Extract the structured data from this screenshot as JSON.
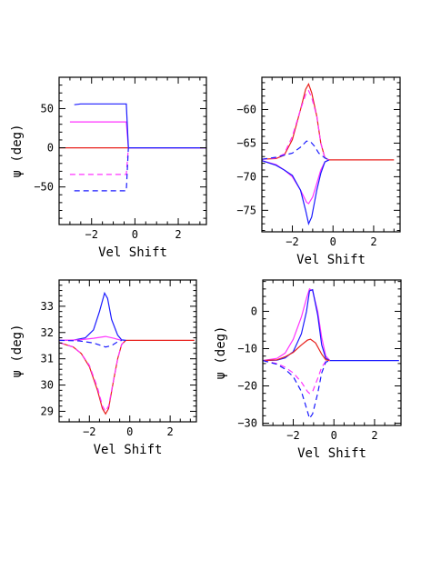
{
  "colors": {
    "red": "#e8201c",
    "magenta": "#ff33ff",
    "blue": "#1a1aff",
    "axis": "#000000"
  },
  "chart_data": [
    {
      "type": "line",
      "panel": "top-left",
      "xlabel": "Vel Shift",
      "ylabel": "ψ (deg)",
      "xlim": [
        -3.5,
        3.3
      ],
      "ylim": [
        -98,
        90
      ],
      "xticks": [
        -2,
        0,
        2
      ],
      "yticks": [
        -50,
        0,
        50
      ],
      "series": [
        {
          "color": "red",
          "style": "solid",
          "points": [
            [
              -3.5,
              0
            ],
            [
              3.3,
              0
            ]
          ]
        },
        {
          "color": "magenta",
          "style": "solid",
          "points": [
            [
              -3.0,
              33
            ],
            [
              -0.4,
              33
            ],
            [
              -0.3,
              0
            ],
            [
              3.3,
              0
            ]
          ]
        },
        {
          "color": "blue",
          "style": "solid",
          "points": [
            [
              -2.8,
              55
            ],
            [
              -2.5,
              56
            ],
            [
              -2,
              56
            ],
            [
              -1,
              56
            ],
            [
              -0.4,
              56
            ],
            [
              -0.3,
              0
            ],
            [
              3.3,
              0
            ]
          ]
        },
        {
          "color": "magenta",
          "style": "dashed",
          "points": [
            [
              -3.0,
              -34
            ],
            [
              -0.4,
              -34
            ],
            [
              -0.3,
              0
            ]
          ]
        },
        {
          "color": "blue",
          "style": "dashed",
          "points": [
            [
              -2.8,
              -55
            ],
            [
              -0.4,
              -55
            ],
            [
              -0.3,
              0
            ]
          ]
        }
      ]
    },
    {
      "type": "line",
      "panel": "top-right",
      "xlabel": "Vel Shift",
      "ylabel": "",
      "xlim": [
        -3.5,
        3.3
      ],
      "ylim": [
        -78.2,
        -55.2
      ],
      "xticks": [
        -2,
        0,
        2
      ],
      "yticks": [
        -75,
        -70,
        -65,
        -60
      ],
      "series": [
        {
          "color": "red",
          "style": "solid",
          "points": [
            [
              -3.5,
              -67.4
            ],
            [
              -2.8,
              -67.3
            ],
            [
              -2.4,
              -66.8
            ],
            [
              -2,
              -64.5
            ],
            [
              -1.6,
              -60
            ],
            [
              -1.35,
              -57
            ],
            [
              -1.2,
              -56.2
            ],
            [
              -1.05,
              -57.5
            ],
            [
              -0.8,
              -61
            ],
            [
              -0.6,
              -65
            ],
            [
              -0.4,
              -67.2
            ],
            [
              -0.2,
              -67.5
            ],
            [
              3.0,
              -67.5
            ]
          ]
        },
        {
          "color": "magenta",
          "style": "dashed",
          "points": [
            [
              -3.5,
              -67.4
            ],
            [
              -2.8,
              -67.2
            ],
            [
              -2.4,
              -66.6
            ],
            [
              -2,
              -64
            ],
            [
              -1.6,
              -60
            ],
            [
              -1.35,
              -57.8
            ],
            [
              -1.2,
              -57.2
            ],
            [
              -1.05,
              -58.2
            ],
            [
              -0.8,
              -61
            ],
            [
              -0.6,
              -65
            ],
            [
              -0.4,
              -67.2
            ],
            [
              -0.2,
              -67.5
            ]
          ]
        },
        {
          "color": "magenta",
          "style": "solid",
          "points": [
            [
              -3.5,
              -67.6
            ],
            [
              -2.8,
              -68.2
            ],
            [
              -2.4,
              -69
            ],
            [
              -2,
              -70
            ],
            [
              -1.6,
              -72
            ],
            [
              -1.3,
              -73.8
            ],
            [
              -1.2,
              -74
            ],
            [
              -1,
              -73
            ],
            [
              -0.8,
              -71
            ],
            [
              -0.6,
              -69
            ],
            [
              -0.4,
              -67.8
            ],
            [
              -0.2,
              -67.5
            ]
          ]
        },
        {
          "color": "blue",
          "style": "solid",
          "points": [
            [
              -3.5,
              -67.6
            ],
            [
              -2.8,
              -68.3
            ],
            [
              -2.4,
              -69
            ],
            [
              -2,
              -69.8
            ],
            [
              -1.6,
              -72
            ],
            [
              -1.35,
              -75
            ],
            [
              -1.2,
              -77
            ],
            [
              -1.05,
              -76
            ],
            [
              -0.8,
              -72
            ],
            [
              -0.6,
              -69.5
            ],
            [
              -0.4,
              -67.8
            ],
            [
              -0.2,
              -67.5
            ]
          ]
        },
        {
          "color": "blue",
          "style": "dashed",
          "points": [
            [
              -3.5,
              -67.4
            ],
            [
              -2.8,
              -67.1
            ],
            [
              -2.4,
              -66.8
            ],
            [
              -2,
              -66.5
            ],
            [
              -1.6,
              -65.6
            ],
            [
              -1.3,
              -64.7
            ],
            [
              -1.1,
              -64.8
            ],
            [
              -0.9,
              -65.5
            ],
            [
              -0.7,
              -66.5
            ],
            [
              -0.4,
              -67.2
            ],
            [
              -0.2,
              -67.5
            ]
          ]
        }
      ]
    },
    {
      "type": "line",
      "panel": "bottom-left",
      "xlabel": "Vel Shift",
      "ylabel": "ψ (deg)",
      "xlim": [
        -3.5,
        3.3
      ],
      "ylim": [
        28.6,
        34.0
      ],
      "xticks": [
        -2,
        0,
        2
      ],
      "yticks": [
        29,
        30,
        31,
        32,
        33
      ],
      "series": [
        {
          "color": "red",
          "style": "solid",
          "points": [
            [
              -3.5,
              31.62
            ],
            [
              -2.8,
              31.45
            ],
            [
              -2.4,
              31.2
            ],
            [
              -2,
              30.7
            ],
            [
              -1.6,
              29.8
            ],
            [
              -1.35,
              29.1
            ],
            [
              -1.2,
              28.9
            ],
            [
              -1.05,
              29.1
            ],
            [
              -0.8,
              30.2
            ],
            [
              -0.6,
              31.0
            ],
            [
              -0.4,
              31.55
            ],
            [
              -0.2,
              31.7
            ],
            [
              3.2,
              31.7
            ]
          ]
        },
        {
          "color": "magenta",
          "style": "dashed",
          "points": [
            [
              -3.5,
              31.62
            ],
            [
              -2.8,
              31.45
            ],
            [
              -2.4,
              31.2
            ],
            [
              -2,
              30.75
            ],
            [
              -1.6,
              29.9
            ],
            [
              -1.35,
              29.2
            ],
            [
              -1.2,
              29.0
            ],
            [
              -1.05,
              29.2
            ],
            [
              -0.8,
              30.2
            ],
            [
              -0.6,
              31.0
            ],
            [
              -0.4,
              31.55
            ],
            [
              -0.2,
              31.7
            ]
          ]
        },
        {
          "color": "blue",
          "style": "solid",
          "points": [
            [
              -3.5,
              31.7
            ],
            [
              -2.8,
              31.71
            ],
            [
              -2.2,
              31.8
            ],
            [
              -1.8,
              32.1
            ],
            [
              -1.5,
              32.8
            ],
            [
              -1.25,
              33.5
            ],
            [
              -1.1,
              33.3
            ],
            [
              -0.9,
              32.5
            ],
            [
              -0.6,
              31.9
            ],
            [
              -0.4,
              31.72
            ],
            [
              -0.2,
              31.7
            ]
          ]
        },
        {
          "color": "magenta",
          "style": "solid",
          "points": [
            [
              -3.5,
              31.7
            ],
            [
              -2.5,
              31.72
            ],
            [
              -1.8,
              31.78
            ],
            [
              -1.2,
              31.85
            ],
            [
              -0.8,
              31.78
            ],
            [
              -0.4,
              31.7
            ]
          ]
        },
        {
          "color": "blue",
          "style": "dashed",
          "points": [
            [
              -3.5,
              31.7
            ],
            [
              -2.5,
              31.68
            ],
            [
              -1.8,
              31.6
            ],
            [
              -1.2,
              31.45
            ],
            [
              -0.9,
              31.5
            ],
            [
              -0.6,
              31.65
            ],
            [
              -0.4,
              31.7
            ]
          ]
        }
      ]
    },
    {
      "type": "line",
      "panel": "bottom-right",
      "xlabel": "Vel Shift",
      "ylabel": "ψ (deg)",
      "xlim": [
        -3.5,
        3.3
      ],
      "ylim": [
        -30.6,
        8.4
      ],
      "xticks": [
        -2,
        0,
        2
      ],
      "yticks": [
        -30,
        -20,
        -10,
        0
      ],
      "series": [
        {
          "color": "magenta",
          "style": "solid",
          "points": [
            [
              -3.5,
              -13.2
            ],
            [
              -2.8,
              -12.6
            ],
            [
              -2.4,
              -11.2
            ],
            [
              -2,
              -7.5
            ],
            [
              -1.6,
              -1.5
            ],
            [
              -1.35,
              3.5
            ],
            [
              -1.2,
              6.0
            ],
            [
              -1.05,
              5.5
            ],
            [
              -0.8,
              0
            ],
            [
              -0.6,
              -7
            ],
            [
              -0.4,
              -12
            ],
            [
              -0.2,
              -13.2
            ]
          ]
        },
        {
          "color": "blue",
          "style": "solid",
          "points": [
            [
              -3.5,
              -13.2
            ],
            [
              -2.8,
              -13.1
            ],
            [
              -2.4,
              -12.5
            ],
            [
              -2,
              -10.8
            ],
            [
              -1.6,
              -6
            ],
            [
              -1.35,
              0
            ],
            [
              -1.2,
              5.5
            ],
            [
              -1.05,
              5.8
            ],
            [
              -0.8,
              -1
            ],
            [
              -0.6,
              -9
            ],
            [
              -0.4,
              -12.6
            ],
            [
              -0.2,
              -13.2
            ],
            [
              3.2,
              -13.2
            ]
          ]
        },
        {
          "color": "red",
          "style": "solid",
          "points": [
            [
              -3.5,
              -13.2
            ],
            [
              -2.8,
              -13.0
            ],
            [
              -2.4,
              -12.2
            ],
            [
              -2,
              -11
            ],
            [
              -1.6,
              -9
            ],
            [
              -1.3,
              -7.7
            ],
            [
              -1.15,
              -7.5
            ],
            [
              -0.9,
              -8.5
            ],
            [
              -0.6,
              -11.5
            ],
            [
              -0.4,
              -13
            ],
            [
              -0.2,
              -13.2
            ]
          ]
        },
        {
          "color": "magenta",
          "style": "dashed",
          "points": [
            [
              -3.5,
              -13.2
            ],
            [
              -2.8,
              -14
            ],
            [
              -2.4,
              -15
            ],
            [
              -2,
              -16.5
            ],
            [
              -1.6,
              -19
            ],
            [
              -1.3,
              -21.5
            ],
            [
              -1.2,
              -22
            ],
            [
              -1.05,
              -21.5
            ],
            [
              -0.8,
              -18
            ],
            [
              -0.6,
              -15
            ],
            [
              -0.4,
              -13.4
            ],
            [
              -0.2,
              -13.2
            ]
          ]
        },
        {
          "color": "blue",
          "style": "dashed",
          "points": [
            [
              -3.5,
              -13.2
            ],
            [
              -2.8,
              -14.2
            ],
            [
              -2.4,
              -15.5
            ],
            [
              -2,
              -17.5
            ],
            [
              -1.6,
              -21.5
            ],
            [
              -1.35,
              -26
            ],
            [
              -1.2,
              -28.7
            ],
            [
              -1.05,
              -27.5
            ],
            [
              -0.8,
              -22
            ],
            [
              -0.6,
              -16.5
            ],
            [
              -0.4,
              -13.6
            ],
            [
              -0.2,
              -13.2
            ]
          ]
        }
      ]
    }
  ]
}
